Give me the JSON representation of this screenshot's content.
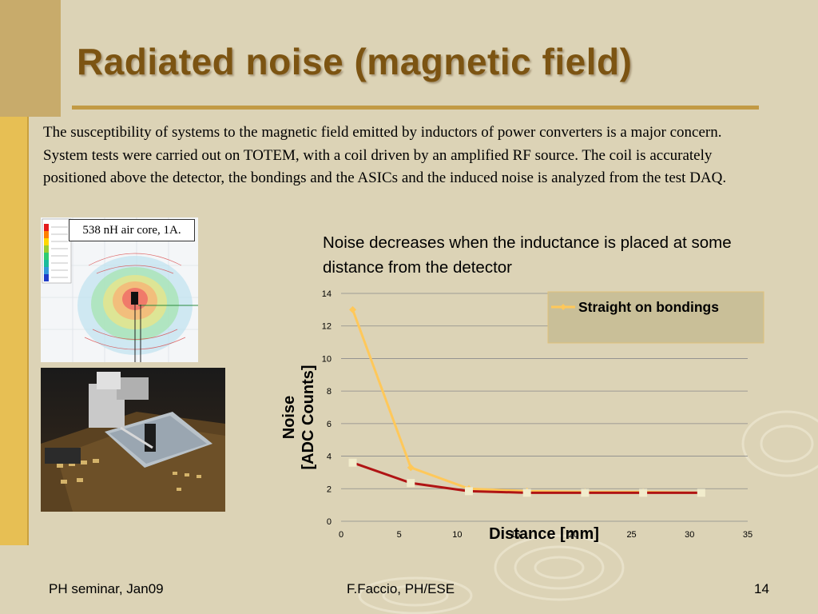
{
  "slide": {
    "title": "Radiated noise (magnetic field)",
    "body": "The susceptibility of systems to the magnetic field emitted by inductors of power converters is a major concern. System tests were carried out on TOTEM, with a coil driven by an amplified RF source. The coil is accurately positioned above the detector, the bondings and the ASICs and the induced noise is analyzed from the test DAQ.",
    "coil_label": "538 nH air core, 1A.",
    "note": "Noise decreases when the inductance is placed at some distance from the detector"
  },
  "footer": {
    "left": "PH seminar, Jan09",
    "center": "F.Faccio, PH/ESE",
    "page": "14"
  },
  "chart_data": {
    "type": "line",
    "title": "",
    "xlabel": "Distance [mm]",
    "ylabel_line1": "Noise",
    "ylabel_line2": "[ADC Counts]",
    "xlim": [
      0,
      35
    ],
    "ylim": [
      0,
      14
    ],
    "x_ticks": [
      0,
      5,
      10,
      15,
      20,
      25,
      30,
      35
    ],
    "y_ticks": [
      0,
      2,
      4,
      6,
      8,
      10,
      12,
      14
    ],
    "grid": true,
    "legend": "top-right",
    "series": [
      {
        "name": "Straight on bondings",
        "color": "#ffc85a",
        "x": [
          1,
          6,
          11,
          16,
          21,
          26,
          31
        ],
        "y": [
          13,
          3.3,
          2.0,
          1.85,
          1.8,
          1.8,
          1.75
        ]
      },
      {
        "color": "#b01414",
        "x": [
          1,
          6,
          11,
          16,
          21,
          26,
          31
        ],
        "y": [
          3.6,
          2.35,
          1.85,
          1.75,
          1.75,
          1.75,
          1.75
        ]
      }
    ]
  }
}
